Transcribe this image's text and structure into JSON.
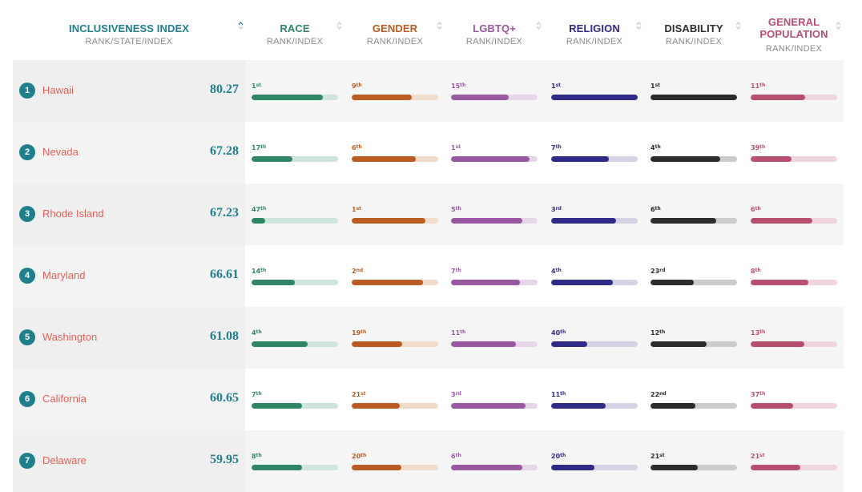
{
  "chart_data": {
    "type": "table",
    "headers": {
      "index": {
        "title": "INCLUSIVENESS INDEX",
        "sub": "RANK/STATE/INDEX"
      },
      "categories": [
        {
          "key": "race",
          "title": "RACE",
          "sub": "RANK/INDEX",
          "color": "#2e8664",
          "track": "#cde5dc"
        },
        {
          "key": "gender",
          "title": "GENDER",
          "sub": "RANK/INDEX",
          "color": "#bb5d22",
          "track": "#f1dcca"
        },
        {
          "key": "lgbtq",
          "title": "LGBTQ+",
          "sub": "RANK/INDEX",
          "color": "#9a58a2",
          "track": "#e7d6e9"
        },
        {
          "key": "religion",
          "title": "RELIGION",
          "sub": "RANK/INDEX",
          "color": "#312b88",
          "track": "#d5d2e6"
        },
        {
          "key": "disability",
          "title": "DISABILITY",
          "sub": "RANK/INDEX",
          "color": "#2c2c2c",
          "track": "#cccccc"
        },
        {
          "key": "general",
          "title": "GENERAL POPULATION",
          "sub": "RANK/INDEX",
          "color": "#b84f6e",
          "track": "#f1d5de"
        }
      ]
    },
    "rows": [
      {
        "rank": "1",
        "state": "Hawaii",
        "index": "80.27",
        "cells": [
          {
            "rank": "1",
            "suffix": "st",
            "value": 0.82
          },
          {
            "rank": "9",
            "suffix": "th",
            "value": 0.69
          },
          {
            "rank": "15",
            "suffix": "th",
            "value": 0.67
          },
          {
            "rank": "1",
            "suffix": "st",
            "value": 1.0
          },
          {
            "rank": "1",
            "suffix": "st",
            "value": 1.0
          },
          {
            "rank": "11",
            "suffix": "th",
            "value": 0.63
          }
        ]
      },
      {
        "rank": "2",
        "state": "Nevada",
        "index": "67.28",
        "cells": [
          {
            "rank": "17",
            "suffix": "th",
            "value": 0.47
          },
          {
            "rank": "6",
            "suffix": "th",
            "value": 0.74
          },
          {
            "rank": "1",
            "suffix": "st",
            "value": 0.91
          },
          {
            "rank": "7",
            "suffix": "th",
            "value": 0.67
          },
          {
            "rank": "4",
            "suffix": "th",
            "value": 0.81
          },
          {
            "rank": "39",
            "suffix": "th",
            "value": 0.47
          }
        ]
      },
      {
        "rank": "3",
        "state": "Rhode Island",
        "index": "67.23",
        "cells": [
          {
            "rank": "47",
            "suffix": "th",
            "value": 0.16
          },
          {
            "rank": "1",
            "suffix": "st",
            "value": 0.85
          },
          {
            "rank": "5",
            "suffix": "th",
            "value": 0.82
          },
          {
            "rank": "3",
            "suffix": "rd",
            "value": 0.75
          },
          {
            "rank": "6",
            "suffix": "th",
            "value": 0.76
          },
          {
            "rank": "6",
            "suffix": "th",
            "value": 0.71
          }
        ]
      },
      {
        "rank": "4",
        "state": "Maryland",
        "index": "66.61",
        "cells": [
          {
            "rank": "14",
            "suffix": "th",
            "value": 0.5
          },
          {
            "rank": "2",
            "suffix": "nd",
            "value": 0.82
          },
          {
            "rank": "7",
            "suffix": "th",
            "value": 0.8
          },
          {
            "rank": "4",
            "suffix": "th",
            "value": 0.71
          },
          {
            "rank": "23",
            "suffix": "rd",
            "value": 0.5
          },
          {
            "rank": "8",
            "suffix": "th",
            "value": 0.67
          }
        ]
      },
      {
        "rank": "5",
        "state": "Washington",
        "index": "61.08",
        "cells": [
          {
            "rank": "4",
            "suffix": "th",
            "value": 0.65
          },
          {
            "rank": "19",
            "suffix": "th",
            "value": 0.58
          },
          {
            "rank": "11",
            "suffix": "th",
            "value": 0.75
          },
          {
            "rank": "40",
            "suffix": "th",
            "value": 0.42
          },
          {
            "rank": "12",
            "suffix": "th",
            "value": 0.65
          },
          {
            "rank": "13",
            "suffix": "th",
            "value": 0.62
          }
        ]
      },
      {
        "rank": "6",
        "state": "California",
        "index": "60.65",
        "cells": [
          {
            "rank": "7",
            "suffix": "th",
            "value": 0.58
          },
          {
            "rank": "21",
            "suffix": "st",
            "value": 0.56
          },
          {
            "rank": "3",
            "suffix": "rd",
            "value": 0.86
          },
          {
            "rank": "11",
            "suffix": "th",
            "value": 0.63
          },
          {
            "rank": "22",
            "suffix": "nd",
            "value": 0.52
          },
          {
            "rank": "37",
            "suffix": "th",
            "value": 0.49
          }
        ]
      },
      {
        "rank": "7",
        "state": "Delaware",
        "index": "59.95",
        "cells": [
          {
            "rank": "8",
            "suffix": "th",
            "value": 0.58
          },
          {
            "rank": "20",
            "suffix": "th",
            "value": 0.57
          },
          {
            "rank": "6",
            "suffix": "th",
            "value": 0.82
          },
          {
            "rank": "20",
            "suffix": "th",
            "value": 0.5
          },
          {
            "rank": "21",
            "suffix": "st",
            "value": 0.55
          },
          {
            "rank": "21",
            "suffix": "st",
            "value": 0.57
          }
        ]
      }
    ],
    "colors": {
      "badge": "#1f7f8c",
      "state": "#e35f57",
      "index_title": "#1f7f8c"
    }
  }
}
